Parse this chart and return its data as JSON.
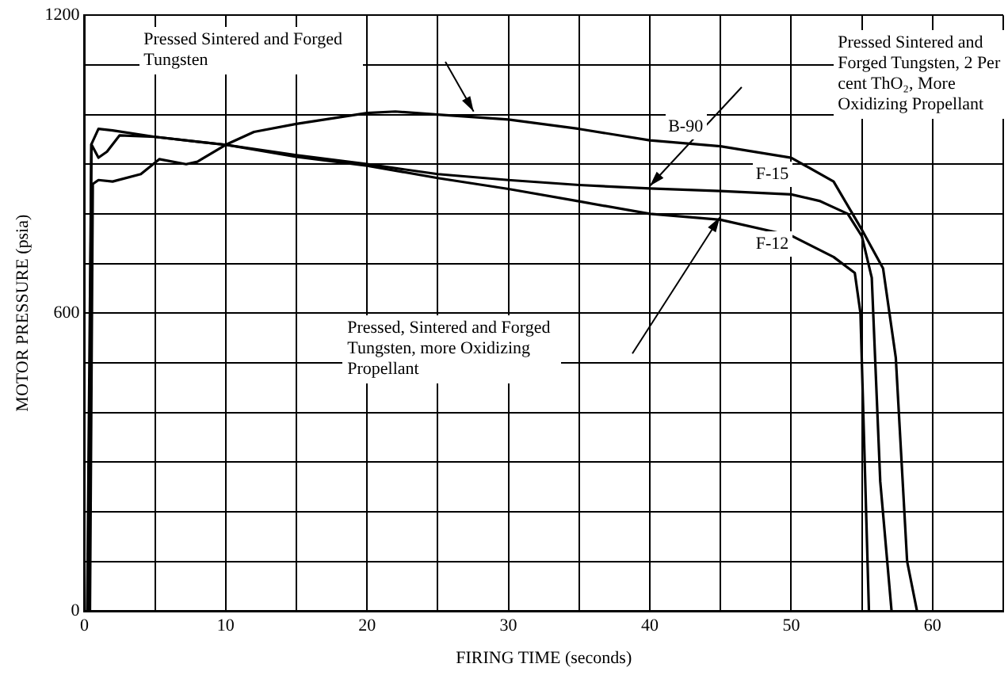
{
  "chart_data": {
    "type": "line",
    "xlabel": "FIRING TIME (seconds)",
    "ylabel": "MOTOR PRESSURE (psia)",
    "xlim": [
      0,
      65
    ],
    "ylim": [
      0,
      1200
    ],
    "xticks": [
      0,
      {
        "value": 5,
        "label": null
      },
      10,
      {
        "value": 15,
        "label": null
      },
      20,
      {
        "value": 25,
        "label": null
      },
      30,
      {
        "value": 35,
        "label": null
      },
      40,
      {
        "value": 45,
        "label": null
      },
      50,
      {
        "value": 55,
        "label": null
      },
      60,
      {
        "value": 65,
        "label": null
      }
    ],
    "yticks": [
      0,
      {
        "value": 100,
        "label": null
      },
      {
        "value": 200,
        "label": null
      },
      {
        "value": 300,
        "label": null
      },
      {
        "value": 400,
        "label": null
      },
      {
        "value": 500,
        "label": null
      },
      600,
      {
        "value": 700,
        "label": null
      },
      {
        "value": 800,
        "label": null
      },
      {
        "value": 900,
        "label": null
      },
      {
        "value": 1000,
        "label": null
      },
      {
        "value": 1100,
        "label": null
      },
      1200
    ],
    "grid": true,
    "series": [
      {
        "name": "B-90",
        "color": "#000000",
        "x": [
          0.4,
          0.6,
          1,
          2,
          4,
          5.3,
          7.2,
          8,
          10,
          12,
          15,
          20,
          22,
          25,
          30,
          35,
          40,
          45,
          50,
          53,
          55,
          56.5,
          57.4,
          58.2,
          58.9
        ],
        "values": [
          0,
          860,
          868,
          865,
          880,
          910,
          900,
          905,
          939,
          965,
          981,
          1003,
          1006,
          1000,
          990,
          971,
          948,
          936,
          913,
          865,
          768,
          690,
          510,
          100,
          0
        ]
      },
      {
        "name": "F-15",
        "color": "#000000",
        "x": [
          0.3,
          0.5,
          1,
          2,
          5,
          10,
          15,
          20,
          25,
          30,
          35,
          40,
          45,
          50,
          52,
          54,
          55,
          55.7,
          56.3,
          57.1
        ],
        "values": [
          0,
          940,
          971,
          968,
          955,
          939,
          918,
          900,
          880,
          868,
          858,
          851,
          846,
          839,
          826,
          800,
          755,
          671,
          261,
          0
        ]
      },
      {
        "name": "F-12",
        "color": "#000000",
        "x": [
          0.2,
          0.5,
          1,
          1.6,
          2.5,
          5,
          10,
          15,
          20,
          25,
          30,
          35,
          40,
          45,
          50,
          53,
          54.5,
          54.9,
          55.5
        ],
        "values": [
          0,
          940,
          913,
          925,
          958,
          955,
          939,
          915,
          897,
          872,
          850,
          825,
          800,
          788,
          756,
          713,
          681,
          600,
          0
        ]
      }
    ],
    "annotations": [
      "Pressed Sintered and Forged Tungsten",
      "Pressed Sintered and Forged Tungsten, 2 Per cent ThO₂, More Oxidizing Propellant",
      "Pressed, Sintered and Forged Tungsten, more Oxidizing Propellant"
    ]
  }
}
